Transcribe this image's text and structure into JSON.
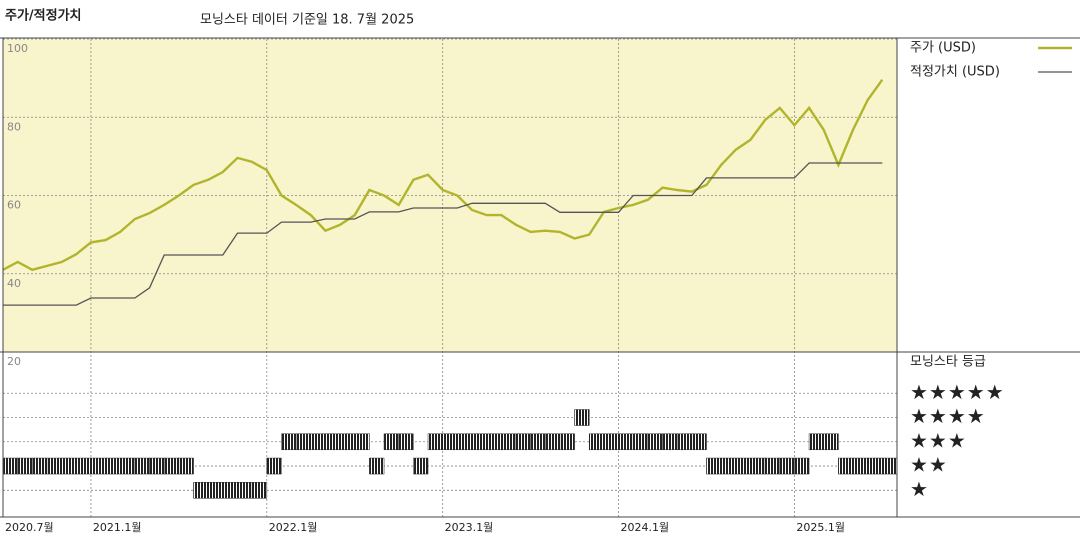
{
  "chart_data": [
    {
      "type": "line",
      "title": "주가/적정가치",
      "subtitle": "모닝스타 데이터 기준일 18. 7월 2025",
      "x": [
        "2020-07",
        "2020-08",
        "2020-09",
        "2020-10",
        "2020-11",
        "2020-12",
        "2021-01",
        "2021-02",
        "2021-03",
        "2021-04",
        "2021-05",
        "2021-06",
        "2021-07",
        "2021-08",
        "2021-09",
        "2021-10",
        "2021-11",
        "2021-12",
        "2022-01",
        "2022-02",
        "2022-03",
        "2022-04",
        "2022-05",
        "2022-06",
        "2022-07",
        "2022-08",
        "2022-09",
        "2022-10",
        "2022-11",
        "2022-12",
        "2023-01",
        "2023-02",
        "2023-03",
        "2023-04",
        "2023-05",
        "2023-06",
        "2023-07",
        "2023-08",
        "2023-09",
        "2023-10",
        "2023-11",
        "2023-12",
        "2024-01",
        "2024-02",
        "2024-03",
        "2024-04",
        "2024-05",
        "2024-06",
        "2024-07",
        "2024-08",
        "2024-09",
        "2024-10",
        "2024-11",
        "2024-12",
        "2025-01",
        "2025-02",
        "2025-03",
        "2025-04",
        "2025-05",
        "2025-06",
        "2025-07"
      ],
      "series": [
        {
          "name": "주가 (USD)",
          "color": "#b2b52c",
          "values": [
            41,
            43,
            41,
            42,
            43,
            45,
            48,
            48.6,
            50.7,
            54,
            55.5,
            57.6,
            60,
            62.7,
            64,
            66,
            69.6,
            68.6,
            66.5,
            60,
            57.6,
            55,
            51,
            52.5,
            55,
            61.4,
            60,
            57.6,
            64,
            65.3,
            61.4,
            60,
            56.3,
            55,
            55,
            52.5,
            50.7,
            51,
            50.7,
            49,
            50,
            55.8,
            56.8,
            57.6,
            58.9,
            62,
            61.4,
            61,
            62.7,
            67.8,
            71.7,
            74.2,
            79.3,
            82.4,
            78,
            82.4,
            76.8,
            67.8,
            76.8,
            84.4,
            89.6
          ]
        },
        {
          "name": "적정가치 (USD)",
          "color": "#555555",
          "values": [
            32,
            32,
            32,
            32,
            32,
            32,
            33.8,
            33.8,
            33.8,
            33.8,
            36.4,
            44.8,
            44.8,
            44.8,
            44.8,
            44.8,
            50.4,
            50.4,
            50.4,
            53.2,
            53.2,
            53.2,
            54,
            54,
            54,
            55.8,
            55.8,
            55.8,
            56.8,
            56.8,
            56.8,
            56.8,
            58,
            58,
            58,
            58,
            58,
            58,
            55.7,
            55.7,
            55.7,
            55.7,
            55.7,
            60,
            60,
            60,
            60,
            60,
            64.5,
            64.5,
            64.5,
            64.5,
            64.5,
            64.5,
            64.5,
            68.3,
            68.3,
            68.3,
            68.3,
            68.3,
            68.3
          ]
        }
      ],
      "xlim": [
        "2020-07",
        "2025-08"
      ],
      "xticks": [
        {
          "value": "2020-07",
          "label": "2020.7월"
        },
        {
          "value": "2021-01",
          "label": "2021.1월"
        },
        {
          "value": "2022-01",
          "label": "2022.1월"
        },
        {
          "value": "2023-01",
          "label": "2023.1월"
        },
        {
          "value": "2024-01",
          "label": "2024.1월"
        },
        {
          "value": "2025-01",
          "label": "2025.1월"
        }
      ],
      "ylim": [
        20,
        100
      ],
      "yticks": [
        20,
        40,
        60,
        80,
        100
      ],
      "grid": true,
      "legend": "right"
    },
    {
      "type": "rating",
      "title": "모닝스타 등급",
      "color": "#222222",
      "x": [
        "2020-07",
        "2020-08",
        "2020-09",
        "2020-10",
        "2020-11",
        "2020-12",
        "2021-01",
        "2021-02",
        "2021-03",
        "2021-04",
        "2021-05",
        "2021-06",
        "2021-07",
        "2021-08",
        "2021-09",
        "2021-10",
        "2021-11",
        "2021-12",
        "2022-01",
        "2022-02",
        "2022-03",
        "2022-04",
        "2022-05",
        "2022-06",
        "2022-07",
        "2022-08",
        "2022-09",
        "2022-10",
        "2022-11",
        "2022-12",
        "2023-01",
        "2023-02",
        "2023-03",
        "2023-04",
        "2023-05",
        "2023-06",
        "2023-07",
        "2023-08",
        "2023-09",
        "2023-10",
        "2023-11",
        "2023-12",
        "2024-01",
        "2024-02",
        "2024-03",
        "2024-04",
        "2024-05",
        "2024-06",
        "2024-07",
        "2024-08",
        "2024-09",
        "2024-10",
        "2024-11",
        "2024-12",
        "2025-01",
        "2025-02",
        "2025-03",
        "2025-04",
        "2025-05",
        "2025-06",
        "2025-07"
      ],
      "values": [
        2,
        2,
        2,
        2,
        2,
        2,
        2,
        2,
        2,
        2,
        2,
        2,
        2,
        1,
        1,
        1,
        1,
        1,
        2,
        3,
        3,
        3,
        3,
        3,
        3,
        2,
        3,
        3,
        2,
        3,
        3,
        3,
        3,
        3,
        3,
        3,
        3,
        3,
        3,
        4,
        3,
        3,
        3,
        3,
        3,
        3,
        3,
        3,
        2,
        2,
        2,
        2,
        2,
        2,
        2,
        3,
        3,
        2,
        2,
        2,
        2
      ],
      "ylim": [
        -0.1,
        6.7
      ],
      "yticks": [
        {
          "value": 5,
          "label": "★★★★★"
        },
        {
          "value": 4,
          "label": "★★★★"
        },
        {
          "value": 3,
          "label": "★★★"
        },
        {
          "value": 2,
          "label": "★★"
        },
        {
          "value": 1,
          "label": "★"
        }
      ]
    }
  ]
}
